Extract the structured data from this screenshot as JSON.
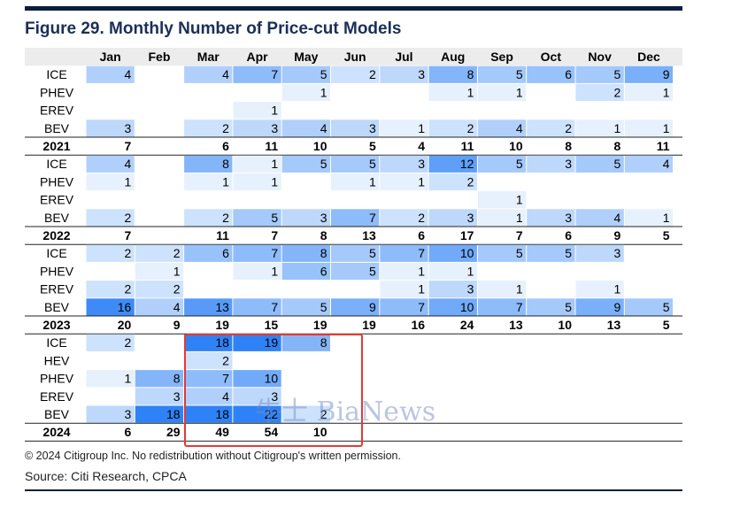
{
  "chart_data": {
    "type": "table",
    "title": "Figure 29. Monthly Number of Price-cut Models",
    "columns": [
      "Jan",
      "Feb",
      "Mar",
      "Apr",
      "May",
      "Jun",
      "Jul",
      "Aug",
      "Sep",
      "Oct",
      "Nov",
      "Dec"
    ],
    "colors": {
      "text": "#000000",
      "scale_low": "#e6f1fd",
      "scale_high": "#2f82f6"
    },
    "groups": [
      {
        "year": "2021",
        "rows": [
          {
            "label": "ICE",
            "values": [
              4,
              null,
              4,
              7,
              5,
              2,
              3,
              8,
              5,
              6,
              5,
              9
            ]
          },
          {
            "label": "PHEV",
            "values": [
              null,
              null,
              null,
              null,
              1,
              null,
              null,
              1,
              1,
              null,
              2,
              1
            ]
          },
          {
            "label": "EREV",
            "values": [
              null,
              null,
              null,
              1,
              null,
              null,
              null,
              null,
              null,
              null,
              null,
              null
            ]
          },
          {
            "label": "BEV",
            "values": [
              3,
              null,
              2,
              3,
              4,
              3,
              1,
              2,
              4,
              2,
              1,
              1
            ]
          }
        ],
        "totals": [
          7,
          null,
          6,
          11,
          10,
          5,
          4,
          11,
          10,
          8,
          8,
          11
        ]
      },
      {
        "year": "2022",
        "rows": [
          {
            "label": "ICE",
            "values": [
              4,
              null,
              8,
              1,
              5,
              5,
              3,
              12,
              5,
              3,
              5,
              4
            ]
          },
          {
            "label": "PHEV",
            "values": [
              1,
              null,
              1,
              1,
              null,
              1,
              1,
              2,
              null,
              null,
              null,
              null
            ]
          },
          {
            "label": "EREV",
            "values": [
              null,
              null,
              null,
              null,
              null,
              null,
              null,
              null,
              1,
              null,
              null,
              null
            ]
          },
          {
            "label": "BEV",
            "values": [
              2,
              null,
              2,
              5,
              3,
              7,
              2,
              3,
              1,
              3,
              4,
              1
            ]
          }
        ],
        "totals": [
          7,
          null,
          11,
          7,
          8,
          13,
          6,
          17,
          7,
          6,
          9,
          5
        ]
      },
      {
        "year": "2023",
        "rows": [
          {
            "label": "ICE",
            "values": [
              2,
              2,
              6,
              7,
              8,
              5,
              7,
              10,
              5,
              5,
              3,
              null
            ]
          },
          {
            "label": "PHEV",
            "values": [
              null,
              1,
              null,
              1,
              6,
              5,
              1,
              1,
              null,
              null,
              null,
              null
            ]
          },
          {
            "label": "EREV",
            "values": [
              2,
              2,
              null,
              null,
              null,
              null,
              1,
              3,
              1,
              null,
              1,
              null
            ]
          },
          {
            "label": "BEV",
            "values": [
              16,
              4,
              13,
              7,
              5,
              9,
              7,
              10,
              7,
              5,
              9,
              5
            ]
          }
        ],
        "totals": [
          20,
          9,
          19,
          15,
          19,
          19,
          16,
          24,
          13,
          10,
          13,
          5
        ]
      },
      {
        "year": "2024",
        "rows": [
          {
            "label": "ICE",
            "values": [
              2,
              null,
              18,
              19,
              8,
              null,
              null,
              null,
              null,
              null,
              null,
              null
            ]
          },
          {
            "label": "HEV",
            "values": [
              null,
              null,
              2,
              null,
              null,
              null,
              null,
              null,
              null,
              null,
              null,
              null
            ]
          },
          {
            "label": "PHEV",
            "values": [
              1,
              8,
              7,
              10,
              null,
              null,
              null,
              null,
              null,
              null,
              null,
              null
            ]
          },
          {
            "label": "EREV",
            "values": [
              null,
              3,
              4,
              3,
              null,
              null,
              null,
              null,
              null,
              null,
              null,
              null
            ]
          },
          {
            "label": "BEV",
            "values": [
              3,
              18,
              18,
              22,
              2,
              null,
              null,
              null,
              null,
              null,
              null,
              null
            ]
          }
        ],
        "totals": [
          6,
          29,
          49,
          54,
          10,
          null,
          null,
          null,
          null,
          null,
          null,
          null
        ]
      }
    ]
  },
  "watermark": "牛士 BiaNews",
  "copyright": "© 2024 Citigroup Inc. No redistribution without Citigroup's written permission.",
  "source": "Source: Citi Research, CPCA"
}
